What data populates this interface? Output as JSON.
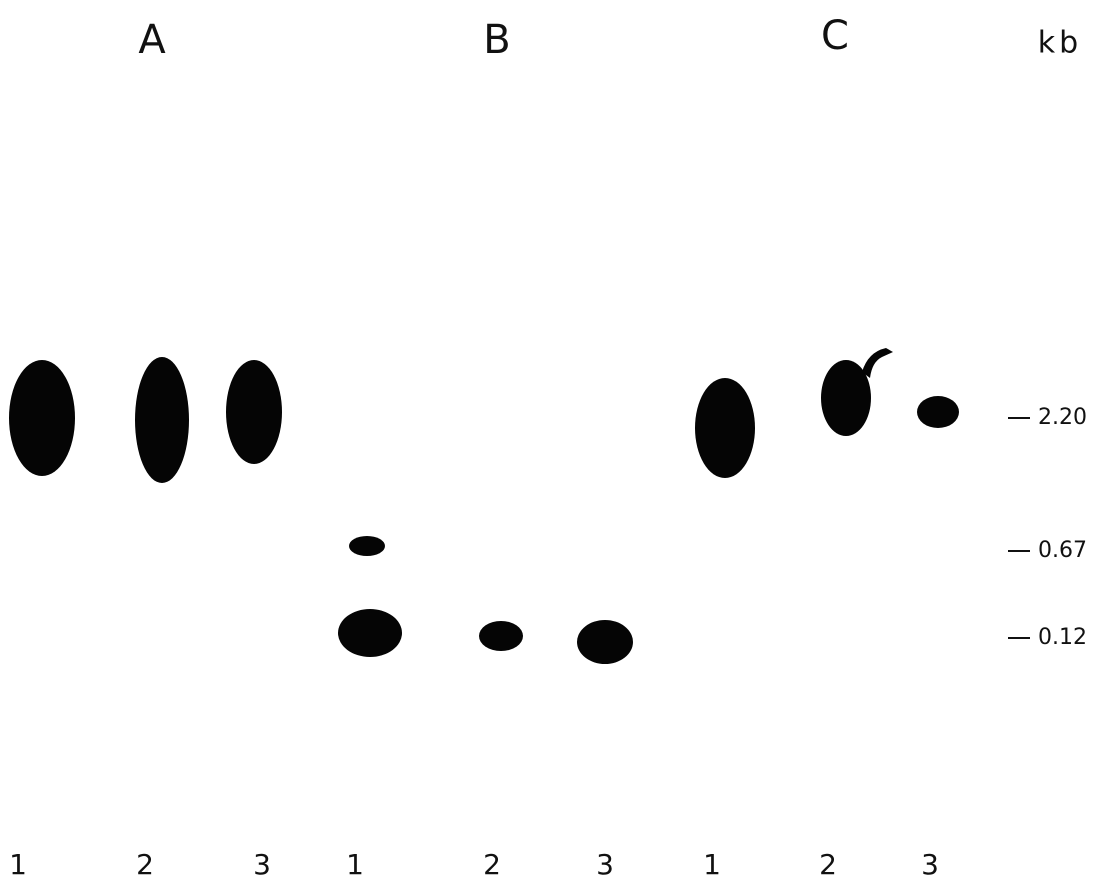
{
  "panels": [
    {
      "label": "A"
    },
    {
      "label": "B"
    },
    {
      "label": "C"
    }
  ],
  "unit": "kb",
  "size_markers": [
    "2.20",
    "0.67",
    "0.12"
  ],
  "lanes": [
    "1",
    "2",
    "3",
    "1",
    "2",
    "3",
    "1",
    "2",
    "3"
  ]
}
